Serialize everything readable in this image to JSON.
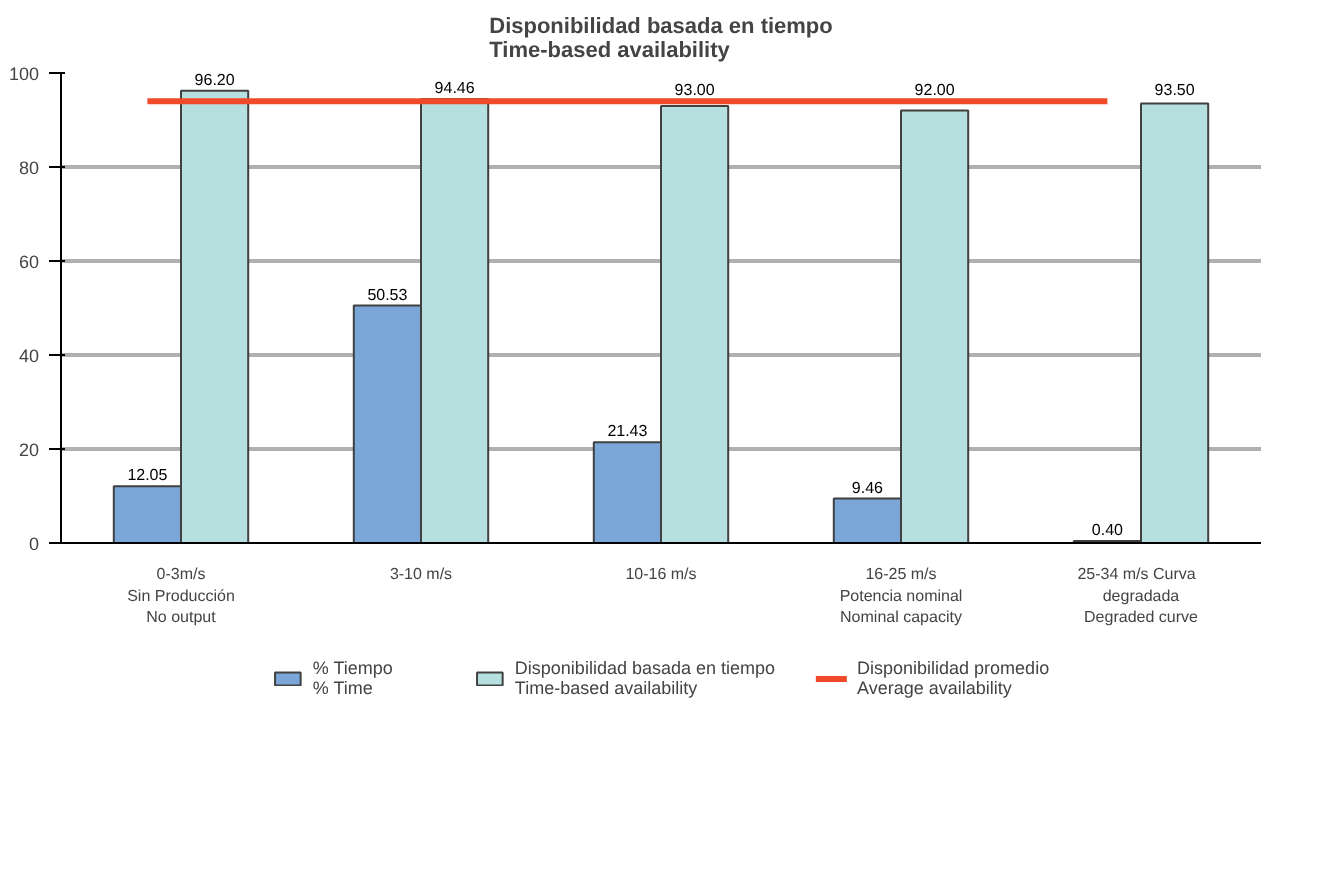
{
  "chart_data": {
    "type": "bar",
    "title": "Disponibilidad basada en tiempo\nTime-based availability",
    "categories": [
      "0-3m/s\nSin Producción\nNo output",
      "3-10 m/s",
      "10-16 m/s",
      "16-25 m/s\nPotencia nominal\nNominal capacity",
      "25-34  m/s  Curva\ndegradada\nDegraded curve"
    ],
    "series": [
      {
        "name": "% Tiempo\n% Time",
        "color": "#7ba7d8",
        "values": [
          12.05,
          50.53,
          21.43,
          9.46,
          0.4
        ],
        "value_labels": [
          "12.05",
          "50.53",
          "21.43",
          "9.46",
          "0.40"
        ]
      },
      {
        "name": "Disponibilidad basada en tiempo\nTime-based availability",
        "color": "#b5e0df",
        "values": [
          96.2,
          94.46,
          93.0,
          92.0,
          93.5
        ],
        "value_labels": [
          "96.20",
          "94.46",
          "93.00",
          "92.00",
          "93.50"
        ]
      }
    ],
    "ref_lines": [
      {
        "axis": "y",
        "value": 94,
        "label": "Disponibilidad promedio\nAverage availability",
        "color": "#f04a2a"
      }
    ],
    "ylim": [
      0,
      100
    ],
    "yticks": [
      0,
      20,
      40,
      60,
      80,
      100
    ],
    "grid": "y",
    "legend": "bottom"
  }
}
